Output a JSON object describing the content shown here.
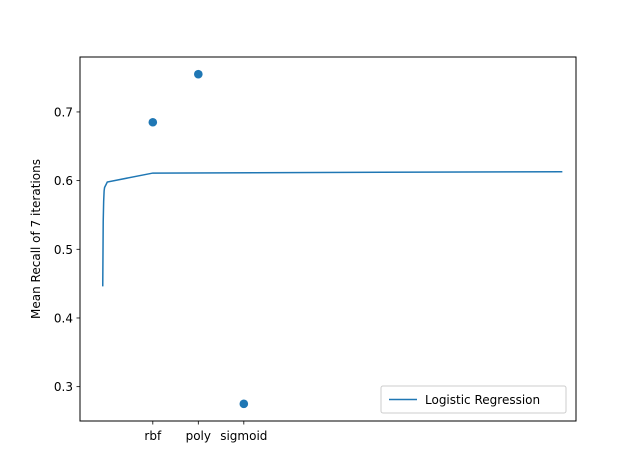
{
  "chart_data": {
    "type": "line",
    "title": "",
    "xlabel": "",
    "ylabel": "Mean Recall of 7 iterations",
    "ylim": [
      0.25,
      0.78
    ],
    "yticks": [
      0.3,
      0.4,
      0.5,
      0.6,
      0.7
    ],
    "xlim": [
      -0.6,
      10.3
    ],
    "xticks": [
      {
        "x": 1,
        "label": "rbf"
      },
      {
        "x": 2,
        "label": "poly"
      },
      {
        "x": 3,
        "label": "sigmoid"
      }
    ],
    "grid": false,
    "legend_position": "lower-right",
    "series": [
      {
        "name": "Logistic Regression",
        "kind": "line",
        "color": "#1f77b4",
        "x": [
          -0.1,
          -0.09,
          -0.08,
          -0.07,
          -0.06,
          0.0,
          1.0,
          10.0
        ],
        "y": [
          0.446,
          0.54,
          0.57,
          0.585,
          0.59,
          0.598,
          0.611,
          0.613
        ]
      },
      {
        "kind": "scatter",
        "color": "#1f77b4",
        "x": [
          1,
          2,
          3
        ],
        "y": [
          0.685,
          0.755,
          0.275
        ]
      }
    ]
  }
}
